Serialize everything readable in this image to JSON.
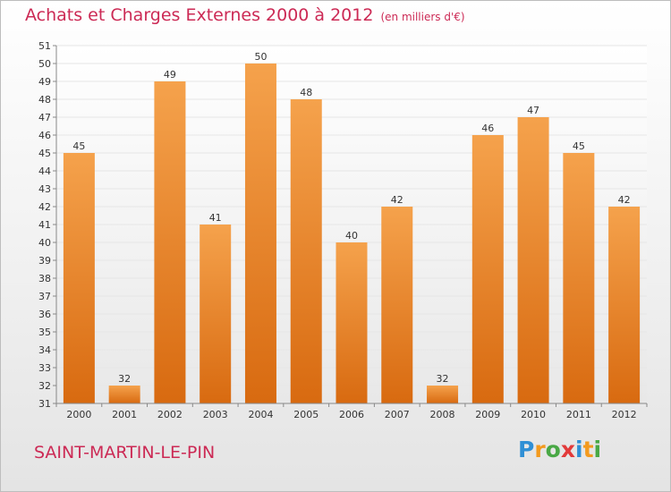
{
  "header": {
    "title": "Achats et Charges Externes 2000 à 2012",
    "unit": "(en milliers d'€)"
  },
  "commune": "SAINT-MARTIN-LE-PIN",
  "logo": {
    "text": "Proxiti",
    "letters": [
      {
        "char": "P",
        "color": "#2f8fd5"
      },
      {
        "char": "r",
        "color": "#f39a1e"
      },
      {
        "char": "o",
        "color": "#49a845"
      },
      {
        "char": "x",
        "color": "#e23a3a"
      },
      {
        "char": "i",
        "color": "#2f8fd5"
      },
      {
        "char": "t",
        "color": "#f39a1e"
      },
      {
        "char": "i",
        "color": "#49a845"
      }
    ]
  },
  "colors": {
    "bar_top": "#f5a24c",
    "bar_bottom": "#d86a10",
    "plot_bg_top": "#ffffff",
    "plot_bg_bottom": "#e8e8e8",
    "grid": "#e6e6e6"
  },
  "chart_data": {
    "type": "bar",
    "categories": [
      "2000",
      "2001",
      "2002",
      "2003",
      "2004",
      "2005",
      "2006",
      "2007",
      "2008",
      "2009",
      "2010",
      "2011",
      "2012"
    ],
    "values": [
      45,
      32,
      49,
      41,
      50,
      48,
      40,
      42,
      32,
      46,
      47,
      45,
      42
    ],
    "ylim": [
      31,
      51
    ],
    "yticks": [
      31,
      32,
      33,
      34,
      35,
      36,
      37,
      38,
      39,
      40,
      41,
      42,
      43,
      44,
      45,
      46,
      47,
      48,
      49,
      50,
      51
    ],
    "grid": true,
    "data_labels": true
  }
}
